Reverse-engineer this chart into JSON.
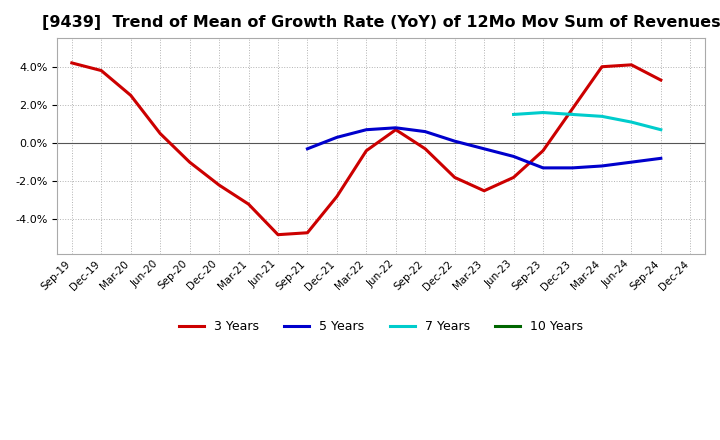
{
  "title": "[9439]  Trend of Mean of Growth Rate (YoY) of 12Mo Mov Sum of Revenues",
  "title_fontsize": 11.5,
  "background_color": "#ffffff",
  "plot_bg_color": "#ffffff",
  "grid_color": "#aaaaaa",
  "xtick_labels": [
    "Sep-19",
    "Dec-19",
    "Mar-20",
    "Jun-20",
    "Sep-20",
    "Dec-20",
    "Mar-21",
    "Jun-21",
    "Sep-21",
    "Dec-21",
    "Mar-22",
    "Jun-22",
    "Sep-22",
    "Dec-22",
    "Mar-23",
    "Jun-23",
    "Sep-23",
    "Dec-23",
    "Mar-24",
    "Jun-24",
    "Sep-24",
    "Dec-24"
  ],
  "series": {
    "3 Years": {
      "color": "#cc0000",
      "linewidth": 2.2,
      "dates": [
        "Sep-19",
        "Dec-19",
        "Mar-20",
        "Jun-20",
        "Sep-20",
        "Dec-20",
        "Mar-21",
        "Jun-21",
        "Sep-21",
        "Dec-21",
        "Mar-22",
        "Jun-22",
        "Sep-22",
        "Dec-22",
        "Mar-23",
        "Jun-23",
        "Sep-23",
        "Dec-23",
        "Mar-24",
        "Jun-24",
        "Sep-24"
      ],
      "values": [
        0.042,
        0.038,
        0.025,
        0.005,
        -0.01,
        -0.022,
        -0.032,
        -0.048,
        -0.047,
        -0.028,
        -0.004,
        0.007,
        -0.003,
        -0.018,
        -0.025,
        -0.018,
        -0.004,
        0.018,
        0.04,
        0.041,
        0.033
      ]
    },
    "5 Years": {
      "color": "#0000cc",
      "linewidth": 2.2,
      "dates": [
        "Sep-21",
        "Dec-21",
        "Mar-22",
        "Jun-22",
        "Sep-22",
        "Dec-22",
        "Mar-23",
        "Jun-23",
        "Sep-23",
        "Dec-23",
        "Mar-24",
        "Jun-24",
        "Sep-24"
      ],
      "values": [
        -0.003,
        0.003,
        0.007,
        0.008,
        0.006,
        0.001,
        -0.003,
        -0.007,
        -0.013,
        -0.013,
        -0.012,
        -0.01,
        -0.008
      ]
    },
    "7 Years": {
      "color": "#00cccc",
      "linewidth": 2.2,
      "dates": [
        "Jun-23",
        "Sep-23",
        "Dec-23",
        "Mar-24",
        "Jun-24",
        "Sep-24"
      ],
      "values": [
        0.015,
        0.016,
        0.015,
        0.014,
        0.011,
        0.007
      ]
    },
    "10 Years": {
      "color": "#006600",
      "linewidth": 2.2,
      "dates": [],
      "values": []
    }
  },
  "ylim": [
    -0.058,
    0.055
  ],
  "yticks": [
    -0.04,
    -0.02,
    0.0,
    0.02,
    0.04
  ],
  "legend_labels": [
    "3 Years",
    "5 Years",
    "7 Years",
    "10 Years"
  ],
  "legend_colors": [
    "#cc0000",
    "#0000cc",
    "#00cccc",
    "#006600"
  ]
}
